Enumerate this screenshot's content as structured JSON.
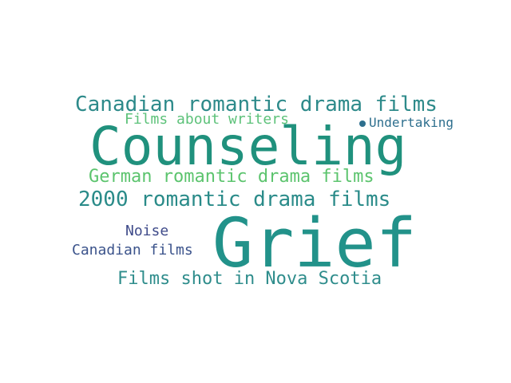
{
  "wordcloud": {
    "words": [
      {
        "text": "Canadian romantic drama films",
        "color": "#2d8a8a"
      },
      {
        "text": "Films about writers",
        "color": "#5dc27a"
      },
      {
        "text": "Undertaking",
        "color": "#2e6f8e"
      },
      {
        "text": "Counseling",
        "color": "#20917d"
      },
      {
        "text": "German romantic drama films",
        "color": "#5cc46e"
      },
      {
        "text": "2000 romantic drama films",
        "color": "#2a8b89"
      },
      {
        "text": "Noise",
        "color": "#3f4b8a"
      },
      {
        "text": "Grief",
        "color": "#22928a"
      },
      {
        "text": "Canadian films",
        "color": "#3b538b"
      },
      {
        "text": "Films shot in Nova Scotia",
        "color": "#2f8d8c"
      }
    ]
  }
}
